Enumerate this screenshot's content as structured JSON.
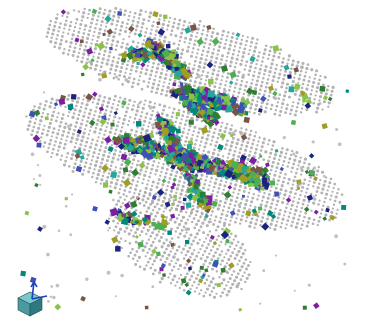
{
  "scene": {
    "background_color": "#ffffff",
    "dot_color": "#a6a6a6",
    "palette": [
      "#4caf50",
      "#2e7d32",
      "#8bc34a",
      "#3f51b5",
      "#1a237e",
      "#7b1fa2",
      "#26a69a",
      "#00897b",
      "#795548",
      "#9e9d24"
    ],
    "orientation_gizmo": {
      "icon": "axis-cube-icon",
      "cube_color": "#4a9aa0",
      "axis_color": "#1a3fbf"
    }
  }
}
